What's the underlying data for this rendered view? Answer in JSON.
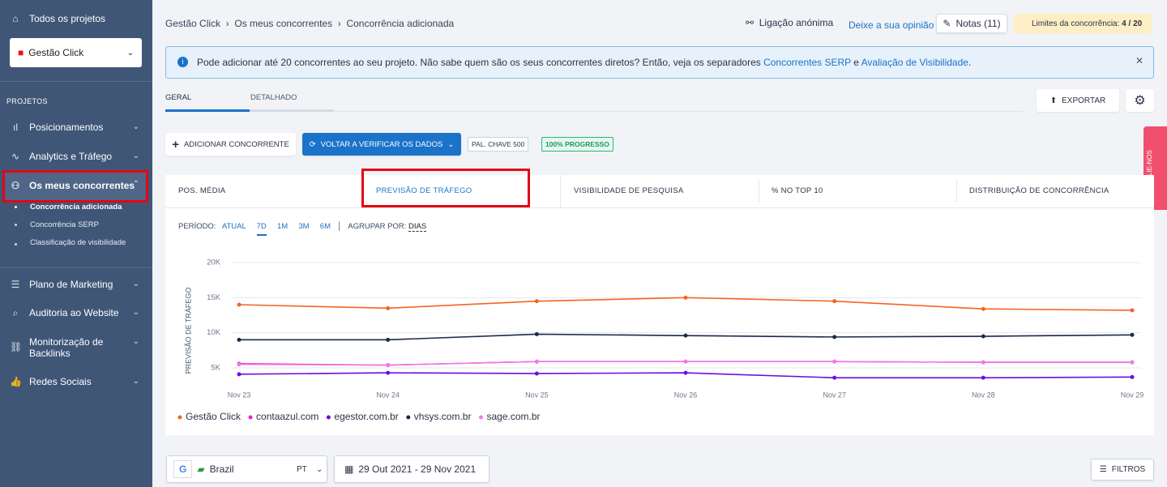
{
  "sidebar": {
    "all_projects": "Todos os projetos",
    "project_select": "Gestão Click",
    "section": "PROJETOS",
    "menu": [
      {
        "label": "Posicionamentos"
      },
      {
        "label": "Analytics e Tráfego"
      },
      {
        "label": "Os meus concorrentes",
        "sub": [
          "Concorrência adicionada",
          "Concorrência SERP",
          "Classificação de visibilidade"
        ]
      },
      {
        "label": "Plano de Marketing"
      },
      {
        "label": "Auditoria ao Website"
      },
      {
        "label": "Monitorização de Backlinks"
      },
      {
        "label": "Redes Sociais"
      }
    ]
  },
  "header": {
    "breadcrumbs": [
      "Gestão Click",
      "Os meus concorrentes",
      "Concorrência adicionada"
    ],
    "anon": "Ligação anónima",
    "feedback": "Deixe a sua opinião",
    "notes": "Notas (11)",
    "limits_label": "Limites da concorrência:",
    "limits_value": "4 / 20"
  },
  "banner": {
    "text_1": "Pode adicionar até 20 concorrentes ao seu projeto. Não sabe quem são os seus concorrentes diretos? Então, veja os separadores ",
    "link_1": "Concorrentes SERP",
    "text_2": " e ",
    "link_2": "Avaliação de Visibilidade",
    "text_3": "."
  },
  "tabs": [
    "GERAL",
    "DETALHADO"
  ],
  "export": "EXPORTAR",
  "toolbar": {
    "add": "ADICIONAR CONCORRENTE",
    "recheck": "VOLTAR A VERIFICAR OS DADOS",
    "keywords": "PAL. CHAVE 500",
    "progress": "100% PROGRESSO"
  },
  "rate_us": "AVALIE-NOS",
  "metric_tabs": [
    "POS. MÉDIA",
    "PREVISÃO DE TRÁFEGO",
    "VISIBILIDADE DE PESQUISA",
    "% NO TOP 10",
    "DISTRIBUIÇÃO DE CONCORRÊNCIA"
  ],
  "period": {
    "label": "PERÍODO:",
    "options": [
      "ATUAL",
      "7D",
      "1M",
      "3M",
      "6M"
    ],
    "group_label": "AGRUPAR POR:",
    "group_value": "DIAS"
  },
  "chart_data": {
    "type": "line",
    "y_label": "PREVISÃO DE TRÁFEGO",
    "categories": [
      "Nov 23",
      "Nov 24",
      "Nov 25",
      "Nov 26",
      "Nov 27",
      "Nov 28",
      "Nov 29"
    ],
    "series": [
      {
        "name": "Gestão Click",
        "color": "#f26522",
        "values": [
          14000,
          13500,
          14500,
          15000,
          14500,
          13400,
          13200
        ]
      },
      {
        "name": "contaazul.com",
        "color": "#e91ecf",
        "values": [
          5600,
          5400,
          5900,
          5900,
          5900,
          5800,
          5800
        ]
      },
      {
        "name": "egestor.com.br",
        "color": "#6a0fe0",
        "values": [
          4100,
          4300,
          4200,
          4300,
          3600,
          3600,
          3700
        ]
      },
      {
        "name": "vhsys.com.br",
        "color": "#1c2a4a",
        "values": [
          9000,
          9000,
          9800,
          9600,
          9400,
          9500,
          9700
        ]
      },
      {
        "name": "sage.com.br",
        "color": "#f07ae6",
        "values": [
          5500,
          5400,
          5900,
          5900,
          5900,
          5800,
          5800
        ]
      }
    ],
    "ylim": [
      2500,
      20000
    ],
    "yticks": [
      {
        "value": 5000,
        "label": "5K"
      },
      {
        "value": 10000,
        "label": "10K"
      },
      {
        "value": 15000,
        "label": "15K"
      },
      {
        "value": 20000,
        "label": "20K"
      }
    ],
    "grid": true
  },
  "footer": {
    "country": "Brazil",
    "lang": "PT",
    "dates": "29 Out 2021 - 29 Nov 2021",
    "filters": "FILTROS"
  }
}
